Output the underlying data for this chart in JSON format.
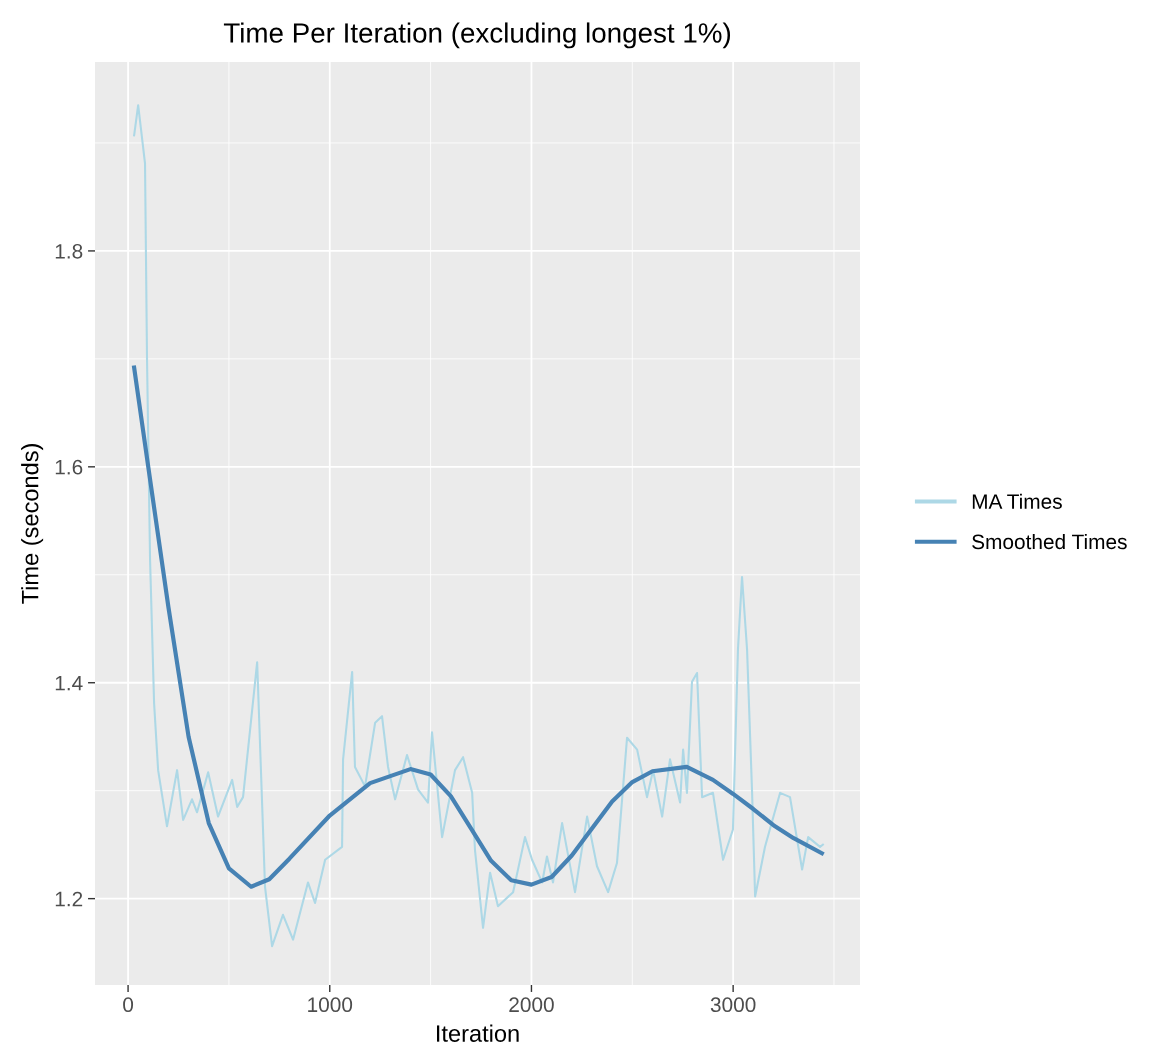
{
  "chart_data": {
    "type": "line",
    "title": "Time Per Iteration (excluding longest 1%)",
    "xlabel": "Iteration",
    "ylabel": "Time (seconds)",
    "xlim": [
      -164,
      3629
    ],
    "ylim": [
      1.12,
      1.975
    ],
    "xticks": [
      0,
      1000,
      2000,
      3000
    ],
    "yticks": [
      1.2,
      1.4,
      1.6,
      1.8
    ],
    "grid": true,
    "legend": "right",
    "marker": "none",
    "line_style": "solid",
    "series": [
      {
        "name": "MA Times",
        "color": "#add8e6",
        "x": [
          30,
          50,
          84,
          94,
          109,
          129,
          149,
          193,
          243,
          273,
          317,
          342,
          397,
          446,
          516,
          541,
          570,
          640,
          679,
          714,
          768,
          818,
          892,
          927,
          977,
          1061,
          1066,
          1111,
          1125,
          1175,
          1225,
          1259,
          1289,
          1324,
          1383,
          1438,
          1487,
          1507,
          1557,
          1621,
          1661,
          1706,
          1720,
          1760,
          1795,
          1834,
          1909,
          1968,
          2003,
          2053,
          2077,
          2107,
          2152,
          2216,
          2276,
          2325,
          2380,
          2424,
          2474,
          2524,
          2573,
          2603,
          2648,
          2687,
          2737,
          2752,
          2771,
          2796,
          2821,
          2846,
          2900,
          2950,
          2999,
          3024,
          3044,
          3069,
          3094,
          3109,
          3158,
          3233,
          3282,
          3342,
          3372,
          3431,
          3445
        ],
        "values": [
          1.907,
          1.935,
          1.881,
          1.699,
          1.514,
          1.381,
          1.319,
          1.267,
          1.319,
          1.273,
          1.292,
          1.28,
          1.317,
          1.276,
          1.31,
          1.285,
          1.294,
          1.419,
          1.211,
          1.156,
          1.185,
          1.162,
          1.215,
          1.196,
          1.236,
          1.248,
          1.329,
          1.41,
          1.322,
          1.304,
          1.363,
          1.369,
          1.322,
          1.292,
          1.333,
          1.301,
          1.289,
          1.354,
          1.257,
          1.319,
          1.331,
          1.298,
          1.245,
          1.173,
          1.224,
          1.193,
          1.206,
          1.257,
          1.236,
          1.215,
          1.239,
          1.215,
          1.27,
          1.206,
          1.276,
          1.23,
          1.206,
          1.233,
          1.349,
          1.338,
          1.294,
          1.319,
          1.276,
          1.329,
          1.289,
          1.338,
          1.298,
          1.401,
          1.409,
          1.294,
          1.298,
          1.236,
          1.264,
          1.431,
          1.498,
          1.431,
          1.298,
          1.202,
          1.248,
          1.298,
          1.294,
          1.227,
          1.257,
          1.248,
          1.25
        ]
      },
      {
        "name": "Smoothed Times",
        "color": "#4682b4",
        "x": [
          30,
          100,
          200,
          300,
          400,
          500,
          610,
          700,
          800,
          1000,
          1200,
          1400,
          1500,
          1600,
          1700,
          1800,
          1900,
          2000,
          2100,
          2200,
          2300,
          2400,
          2500,
          2600,
          2770,
          2900,
          3000,
          3100,
          3200,
          3300,
          3440
        ],
        "values": [
          1.692,
          1.6,
          1.47,
          1.35,
          1.27,
          1.228,
          1.211,
          1.218,
          1.237,
          1.277,
          1.307,
          1.32,
          1.315,
          1.295,
          1.265,
          1.235,
          1.217,
          1.213,
          1.22,
          1.24,
          1.265,
          1.29,
          1.308,
          1.318,
          1.322,
          1.31,
          1.297,
          1.283,
          1.268,
          1.256,
          1.242
        ]
      }
    ]
  }
}
